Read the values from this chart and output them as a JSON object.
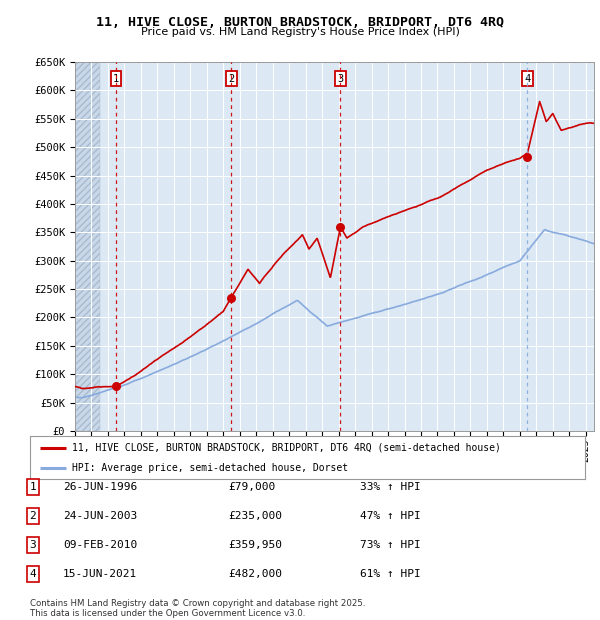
{
  "title_line1": "11, HIVE CLOSE, BURTON BRADSTOCK, BRIDPORT, DT6 4RQ",
  "title_line2": "Price paid vs. HM Land Registry's House Price Index (HPI)",
  "plot_bg_color": "#dce9f5",
  "red_line_color": "#cc0000",
  "blue_line_color": "#88aadd",
  "purchase_dates": [
    1996.49,
    2003.48,
    2010.11,
    2021.46
  ],
  "purchase_prices": [
    79000,
    235000,
    359950,
    482000
  ],
  "purchase_labels": [
    "1",
    "2",
    "3",
    "4"
  ],
  "ylabel_ticks": [
    "£0",
    "£50K",
    "£100K",
    "£150K",
    "£200K",
    "£250K",
    "£300K",
    "£350K",
    "£400K",
    "£450K",
    "£500K",
    "£550K",
    "£600K",
    "£650K"
  ],
  "ytick_values": [
    0,
    50000,
    100000,
    150000,
    200000,
    250000,
    300000,
    350000,
    400000,
    450000,
    500000,
    550000,
    600000,
    650000
  ],
  "xmin": 1994.0,
  "xmax": 2025.5,
  "ymin": 0,
  "ymax": 650000,
  "legend_entries": [
    "11, HIVE CLOSE, BURTON BRADSTOCK, BRIDPORT, DT6 4RQ (semi-detached house)",
    "HPI: Average price, semi-detached house, Dorset"
  ],
  "table_data": [
    [
      "1",
      "26-JUN-1996",
      "£79,000",
      "33% ↑ HPI"
    ],
    [
      "2",
      "24-JUN-2003",
      "£235,000",
      "47% ↑ HPI"
    ],
    [
      "3",
      "09-FEB-2010",
      "£359,950",
      "73% ↑ HPI"
    ],
    [
      "4",
      "15-JUN-2021",
      "£482,000",
      "61% ↑ HPI"
    ]
  ],
  "footer_text": "Contains HM Land Registry data © Crown copyright and database right 2025.\nThis data is licensed under the Open Government Licence v3.0."
}
